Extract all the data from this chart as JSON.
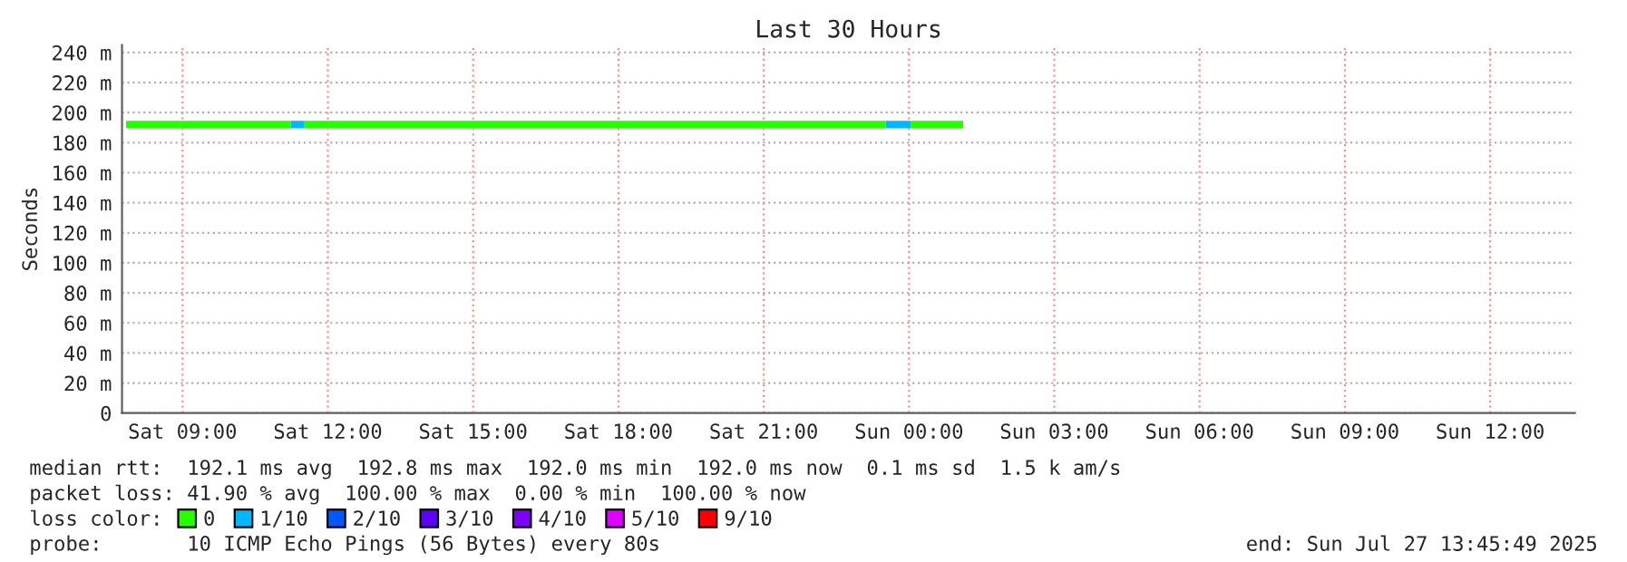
{
  "chart_data": {
    "type": "line",
    "title": "Last 30 Hours",
    "ylabel": "Seconds",
    "legend_title": "loss color:",
    "legend": "bottom",
    "grid": true,
    "line_style": "solid",
    "marker": "none",
    "xlim": [
      "2025-07-26T07:45",
      "2025-07-27T13:45"
    ],
    "xticks": [
      {
        "value": "2025-07-26T09:00",
        "label": "Sat 09:00"
      },
      {
        "value": "2025-07-26T12:00",
        "label": "Sat 12:00"
      },
      {
        "value": "2025-07-26T15:00",
        "label": "Sat 15:00"
      },
      {
        "value": "2025-07-26T18:00",
        "label": "Sat 18:00"
      },
      {
        "value": "2025-07-26T21:00",
        "label": "Sat 21:00"
      },
      {
        "value": "2025-07-27T00:00",
        "label": "Sun 00:00"
      },
      {
        "value": "2025-07-27T03:00",
        "label": "Sun 03:00"
      },
      {
        "value": "2025-07-27T06:00",
        "label": "Sun 06:00"
      },
      {
        "value": "2025-07-27T09:00",
        "label": "Sun 09:00"
      },
      {
        "value": "2025-07-27T12:00",
        "label": "Sun 12:00"
      }
    ],
    "ylim": [
      0,
      245
    ],
    "yticks": [
      0,
      {
        "value": 20,
        "label": "20 m"
      },
      {
        "value": 40,
        "label": "40 m"
      },
      {
        "value": 60,
        "label": "60 m"
      },
      {
        "value": 80,
        "label": "80 m"
      },
      {
        "value": 100,
        "label": "100 m"
      },
      {
        "value": 120,
        "label": "120 m"
      },
      {
        "value": 140,
        "label": "140 m"
      },
      {
        "value": 160,
        "label": "160 m"
      },
      {
        "value": 180,
        "label": "180 m"
      },
      {
        "value": 200,
        "label": "200 m"
      },
      {
        "value": 220,
        "label": "220 m"
      },
      {
        "value": 240,
        "label": "240 m"
      }
    ],
    "series": [
      {
        "name": "0",
        "color": "#26ff00",
        "x": [
          "2025-07-26T07:50",
          "2025-07-26T11:14",
          "2025-07-26T11:20",
          "2025-07-26T11:31",
          "2025-07-26T23:31",
          "2025-07-26T23:45",
          "2025-07-27T00:02",
          "2025-07-27T01:07"
        ],
        "values": [
          192,
          192,
          null,
          192,
          192,
          null,
          192,
          192
        ]
      },
      {
        "name": "1/10",
        "color": "#00b8ff",
        "x": [
          "2025-07-26T11:14",
          "2025-07-26T11:31",
          "2025-07-26T11:40",
          "2025-07-26T23:31",
          "2025-07-27T00:02"
        ],
        "values": [
          192,
          192,
          null,
          192,
          192
        ]
      },
      {
        "name": "2/10",
        "color": "#0059ff"
      },
      {
        "name": "3/10",
        "color": "#5e00ff"
      },
      {
        "name": "4/10",
        "color": "#7e00ff"
      },
      {
        "name": "5/10",
        "color": "#dd00ff"
      },
      {
        "name": "9/10",
        "color": "#ff0000"
      }
    ],
    "annotations": [
      "median rtt:  192.1 ms avg  192.8 ms max  192.0 ms min  192.0 ms now  0.1 ms sd  1.5 k am/s",
      "packet loss: 41.90 % avg  100.00 % max  0.00 % min  100.00 % now",
      "probe:       10 ICMP Echo Pings (56 Bytes) every 80s",
      "end: Sun Jul 27 13:45:49 2025"
    ]
  }
}
